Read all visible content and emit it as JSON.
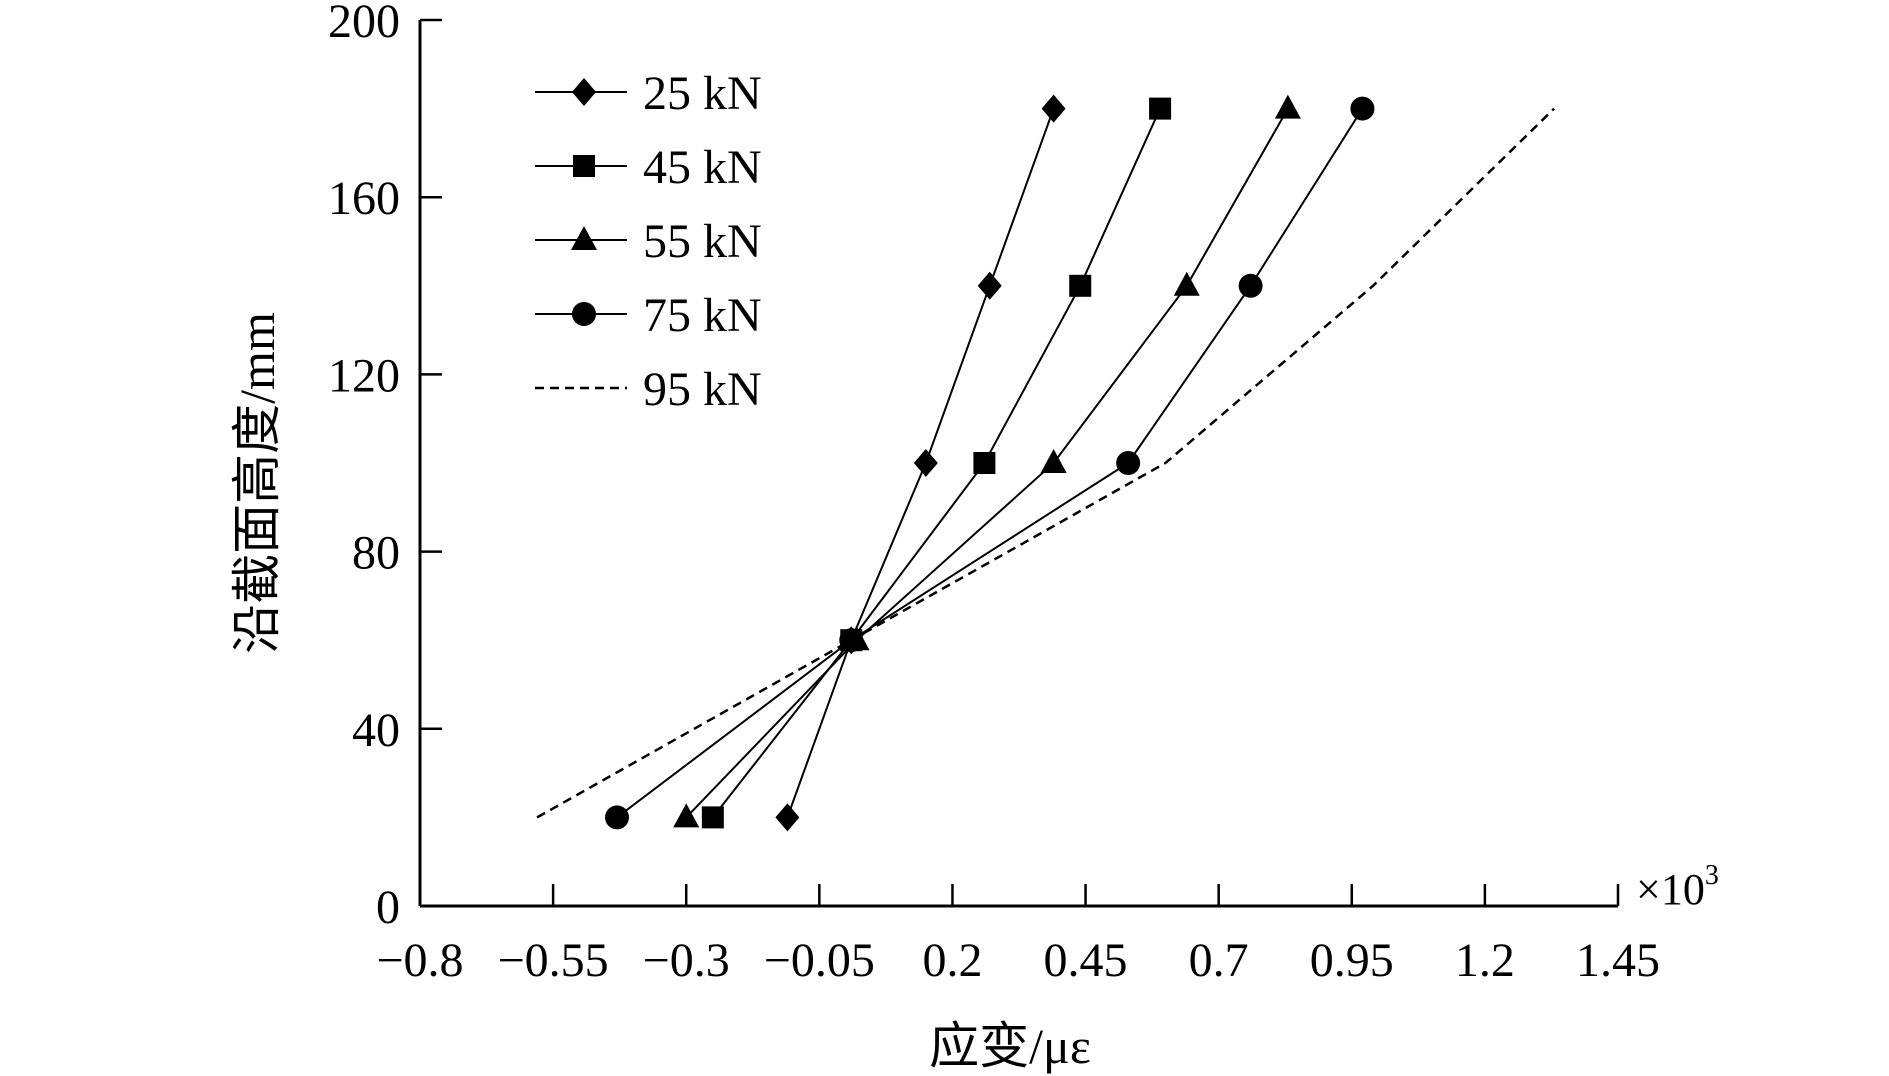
{
  "chart_data": {
    "type": "line",
    "title": "",
    "xlabel": "应变/με",
    "ylabel": "沿截面高度/mm",
    "x_multiplier_label": "×10",
    "x_multiplier_exp": "3",
    "xlim": [
      -0.8,
      1.45
    ],
    "ylim": [
      0,
      200
    ],
    "x_ticks": [
      -0.8,
      -0.55,
      -0.3,
      -0.05,
      0.2,
      0.45,
      0.7,
      0.95,
      1.2,
      1.45
    ],
    "x_tick_labels": [
      "−0.8",
      "−0.55",
      "−0.3",
      "−0.05",
      "0.2",
      "0.45",
      "0.7",
      "0.95",
      "1.2",
      "1.45"
    ],
    "y_ticks": [
      0,
      40,
      80,
      120,
      160,
      200
    ],
    "y_tick_labels": [
      "0",
      "40",
      "80",
      "120",
      "160",
      "200"
    ],
    "grid": false,
    "legend_position": "top-left",
    "series": [
      {
        "name": "25 kN",
        "marker": "diamond",
        "dash": false,
        "x": [
          -0.11,
          0.01,
          0.15,
          0.27,
          0.39
        ],
        "y": [
          20,
          60,
          100,
          140,
          180
        ]
      },
      {
        "name": "45 kN",
        "marker": "square",
        "dash": false,
        "x": [
          -0.25,
          0.01,
          0.26,
          0.44,
          0.59
        ],
        "y": [
          20,
          60,
          100,
          140,
          180
        ]
      },
      {
        "name": "55 kN",
        "marker": "triangle",
        "dash": false,
        "x": [
          -0.3,
          0.02,
          0.39,
          0.64,
          0.83
        ],
        "y": [
          20,
          60,
          100,
          140,
          180
        ]
      },
      {
        "name": "75 kN",
        "marker": "circle",
        "dash": false,
        "x": [
          -0.43,
          0.01,
          0.53,
          0.76,
          0.97
        ],
        "y": [
          20,
          60,
          100,
          140,
          180
        ]
      },
      {
        "name": "95 kN",
        "marker": "none",
        "dash": true,
        "x": [
          -0.58,
          0.01,
          0.6,
          0.99,
          1.33
        ],
        "y": [
          20,
          60,
          100,
          140,
          180
        ]
      }
    ]
  }
}
